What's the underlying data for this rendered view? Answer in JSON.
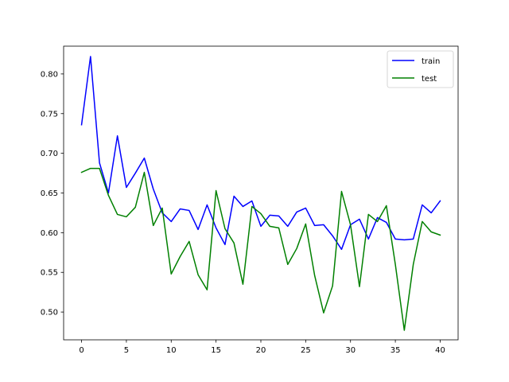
{
  "chart_data": {
    "type": "line",
    "title": "",
    "xlabel": "",
    "ylabel": "",
    "xlim": [
      -2,
      42
    ],
    "ylim": [
      0.465,
      0.835
    ],
    "xticks": [
      0,
      5,
      10,
      15,
      20,
      25,
      30,
      35,
      40
    ],
    "yticks": [
      0.5,
      0.55,
      0.6,
      0.65,
      0.7,
      0.75,
      0.8
    ],
    "ytick_labels": [
      "0.50",
      "0.55",
      "0.60",
      "0.65",
      "0.70",
      "0.75",
      "0.80"
    ],
    "grid": false,
    "legend_position": "top-right",
    "x": [
      0,
      1,
      2,
      3,
      4,
      5,
      6,
      7,
      8,
      9,
      10,
      11,
      12,
      13,
      14,
      15,
      16,
      17,
      18,
      19,
      20,
      21,
      22,
      23,
      24,
      25,
      26,
      27,
      28,
      29,
      30,
      31,
      32,
      33,
      34,
      35,
      36,
      37,
      38,
      39,
      40
    ],
    "series": [
      {
        "name": "train",
        "color": "#0000ff",
        "values": [
          0.736,
          0.822,
          0.688,
          0.65,
          0.722,
          0.657,
          0.675,
          0.694,
          0.655,
          0.625,
          0.614,
          0.63,
          0.628,
          0.604,
          0.635,
          0.606,
          0.585,
          0.646,
          0.633,
          0.64,
          0.608,
          0.622,
          0.621,
          0.608,
          0.626,
          0.631,
          0.609,
          0.61,
          0.596,
          0.579,
          0.61,
          0.617,
          0.592,
          0.619,
          0.613,
          0.592,
          0.591,
          0.592,
          0.635,
          0.625,
          0.64
        ]
      },
      {
        "name": "test",
        "color": "#008000",
        "values": [
          0.676,
          0.681,
          0.681,
          0.647,
          0.623,
          0.62,
          0.632,
          0.676,
          0.609,
          0.631,
          0.548,
          0.57,
          0.589,
          0.547,
          0.528,
          0.653,
          0.605,
          0.587,
          0.535,
          0.633,
          0.624,
          0.608,
          0.606,
          0.56,
          0.58,
          0.611,
          0.546,
          0.499,
          0.533,
          0.652,
          0.61,
          0.532,
          0.623,
          0.614,
          0.634,
          0.56,
          0.477,
          0.56,
          0.614,
          0.601,
          0.597
        ]
      }
    ]
  }
}
